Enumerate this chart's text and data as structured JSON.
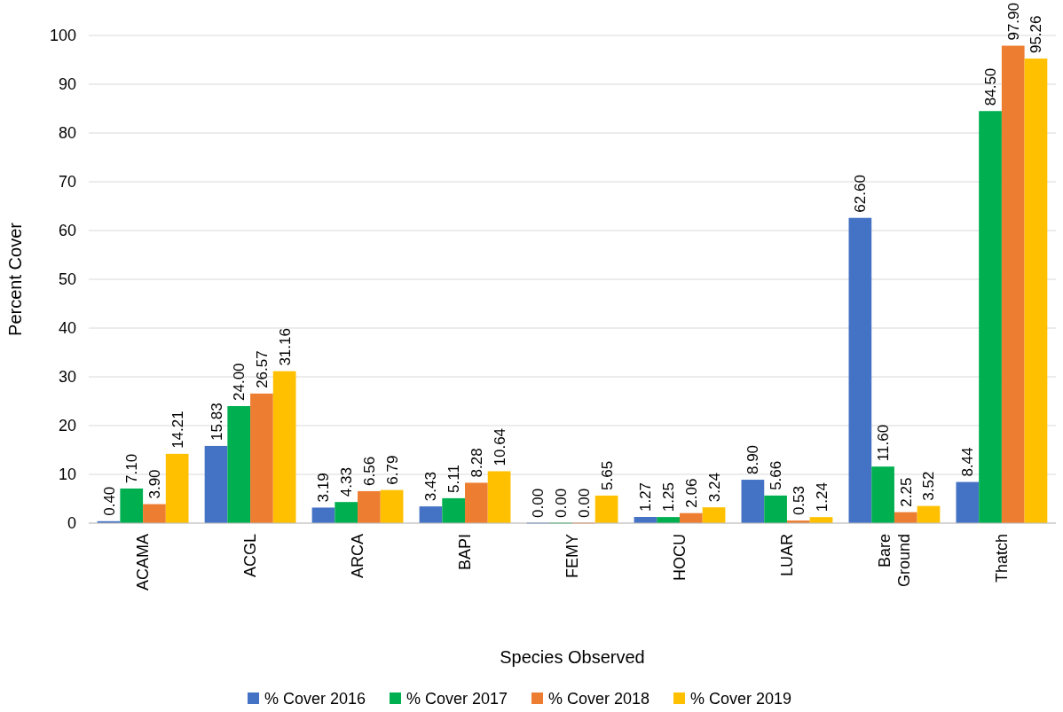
{
  "chart_data": {
    "type": "bar",
    "xlabel": "Species Observed",
    "ylabel": "Percent Cover",
    "categories": [
      "ACAMA",
      "ACGL",
      "ARCA",
      "BAPI",
      "FEMY",
      "HOCU",
      "LUAR",
      "Bare Ground",
      "Thatch"
    ],
    "series": [
      {
        "name": "% Cover 2016",
        "color": "#4472c4",
        "values": [
          0.4,
          15.83,
          3.19,
          3.43,
          0.0,
          1.27,
          8.9,
          62.6,
          8.44
        ],
        "value_labels": [
          "0.40",
          "15.83",
          "3.19",
          "3.43",
          "0.00",
          "1.27",
          "8.90",
          "62.60",
          "8.44"
        ]
      },
      {
        "name": "% Cover 2017",
        "color": "#00b050",
        "values": [
          7.1,
          24.0,
          4.33,
          5.11,
          0.0,
          1.25,
          5.66,
          11.6,
          84.5
        ],
        "value_labels": [
          "7.10",
          "24.00",
          "4.33",
          "5.11",
          "0.00",
          "1.25",
          "5.66",
          "11.60",
          "84.50"
        ]
      },
      {
        "name": "% Cover 2018",
        "color": "#ed7d31",
        "values": [
          3.9,
          26.57,
          6.56,
          8.28,
          0.0,
          2.06,
          0.53,
          2.25,
          97.9
        ],
        "value_labels": [
          "3.90",
          "26.57",
          "6.56",
          "8.28",
          "0.00",
          "2.06",
          "0.53",
          "2.25",
          "97.90"
        ]
      },
      {
        "name": "% Cover 2019",
        "color": "#ffc000",
        "values": [
          14.21,
          31.16,
          6.79,
          10.64,
          5.65,
          3.24,
          1.24,
          3.52,
          95.26
        ],
        "value_labels": [
          "14.21",
          "31.16",
          "6.79",
          "10.64",
          "5.65",
          "3.24",
          "1.24",
          "3.52",
          "95.26"
        ]
      }
    ],
    "ylim": [
      0,
      100
    ],
    "yticks": [
      0,
      10,
      20,
      30,
      40,
      50,
      60,
      70,
      80,
      90,
      100
    ],
    "grid": "y",
    "legend": "bottom"
  }
}
